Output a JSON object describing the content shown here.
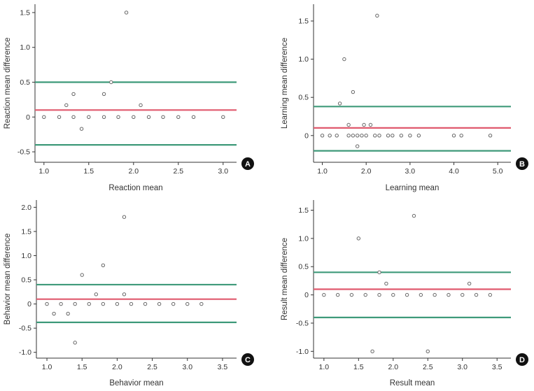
{
  "colors": {
    "mean_line": "#e05a6e",
    "limit_line": "#3f9a7a",
    "point": "#666666",
    "badge": "#111111"
  },
  "chart_data": [
    {
      "type": "scatter",
      "panel": "A",
      "xlabel": "Reaction mean",
      "ylabel": "Reaction mean difference",
      "xlim": [
        0.9,
        3.15
      ],
      "ylim": [
        -0.65,
        1.62
      ],
      "xticks": [
        "1.0",
        "1.5",
        "2.0",
        "2.5",
        "3.0"
      ],
      "yticks": [
        "-0.5",
        "0",
        "0.5",
        "1.0",
        "1.5"
      ],
      "mean_line": 0.1,
      "limits": [
        -0.4,
        0.5
      ],
      "points": [
        [
          1.0,
          0
        ],
        [
          1.17,
          0
        ],
        [
          1.33,
          0
        ],
        [
          1.5,
          0
        ],
        [
          1.67,
          0
        ],
        [
          1.83,
          0
        ],
        [
          2.0,
          0
        ],
        [
          2.17,
          0
        ],
        [
          2.33,
          0
        ],
        [
          2.5,
          0
        ],
        [
          2.67,
          0
        ],
        [
          3.0,
          0
        ],
        [
          1.25,
          0.17
        ],
        [
          1.33,
          0.33
        ],
        [
          1.42,
          -0.17
        ],
        [
          1.67,
          0.33
        ],
        [
          1.75,
          0.5
        ],
        [
          1.92,
          1.5
        ],
        [
          2.08,
          0.17
        ]
      ]
    },
    {
      "type": "scatter",
      "panel": "B",
      "xlabel": "Learning mean",
      "ylabel": "Learning mean difference",
      "xlim": [
        0.8,
        5.3
      ],
      "ylim": [
        -0.35,
        1.72
      ],
      "xticks": [
        "1.0",
        "2.0",
        "3.0",
        "4.0",
        "5.0"
      ],
      "yticks": [
        "0",
        "0.5",
        "1.0",
        "1.5"
      ],
      "mean_line": 0.1,
      "limits": [
        -0.2,
        0.38
      ],
      "points": [
        [
          1.0,
          0
        ],
        [
          1.17,
          0
        ],
        [
          1.33,
          0
        ],
        [
          1.6,
          0
        ],
        [
          1.7,
          0
        ],
        [
          1.8,
          0
        ],
        [
          1.9,
          0
        ],
        [
          2.0,
          0
        ],
        [
          2.2,
          0
        ],
        [
          2.3,
          0
        ],
        [
          2.5,
          0
        ],
        [
          2.6,
          0
        ],
        [
          2.8,
          0
        ],
        [
          3.0,
          0
        ],
        [
          3.2,
          0
        ],
        [
          4.0,
          0
        ],
        [
          4.17,
          0
        ],
        [
          4.83,
          0
        ],
        [
          1.4,
          0.42
        ],
        [
          1.5,
          1.0
        ],
        [
          1.7,
          0.57
        ],
        [
          1.6,
          0.14
        ],
        [
          1.8,
          -0.14
        ],
        [
          1.95,
          0.14
        ],
        [
          2.1,
          0.14
        ],
        [
          2.25,
          1.57
        ]
      ]
    },
    {
      "type": "scatter",
      "panel": "C",
      "xlabel": "Behavior mean",
      "ylabel": "Behavior mean difference",
      "xlim": [
        0.85,
        3.7
      ],
      "ylim": [
        -1.12,
        2.15
      ],
      "xticks": [
        "1.0",
        "1.5",
        "2.0",
        "2.5",
        "3.0",
        "3.5"
      ],
      "yticks": [
        "-1.0",
        "-0.5",
        "0",
        "0.5",
        "1.0",
        "1.5",
        "2.0"
      ],
      "mean_line": 0.1,
      "limits": [
        -0.38,
        0.4
      ],
      "points": [
        [
          1.0,
          0
        ],
        [
          1.2,
          0
        ],
        [
          1.4,
          0
        ],
        [
          1.6,
          0
        ],
        [
          1.8,
          0
        ],
        [
          2.0,
          0
        ],
        [
          2.2,
          0
        ],
        [
          2.4,
          0
        ],
        [
          2.6,
          0
        ],
        [
          2.8,
          0
        ],
        [
          3.0,
          0
        ],
        [
          3.2,
          0
        ],
        [
          1.1,
          -0.2
        ],
        [
          1.3,
          -0.2
        ],
        [
          1.4,
          -0.8
        ],
        [
          1.5,
          0.6
        ],
        [
          1.7,
          0.2
        ],
        [
          1.8,
          0.8
        ],
        [
          2.1,
          1.8
        ],
        [
          2.1,
          0.2
        ]
      ]
    },
    {
      "type": "scatter",
      "panel": "D",
      "xlabel": "Result mean",
      "ylabel": "Result mean difference",
      "xlim": [
        0.85,
        3.7
      ],
      "ylim": [
        -1.12,
        1.68
      ],
      "xticks": [
        "1.0",
        "1.5",
        "2.0",
        "2.5",
        "3.0",
        "3.5"
      ],
      "yticks": [
        "-1.0",
        "-0.5",
        "0",
        "0.5",
        "1.0",
        "1.5"
      ],
      "mean_line": 0.1,
      "limits": [
        -0.4,
        0.4
      ],
      "points": [
        [
          1.0,
          0
        ],
        [
          1.2,
          0
        ],
        [
          1.4,
          0
        ],
        [
          1.6,
          0
        ],
        [
          1.8,
          0
        ],
        [
          2.0,
          0
        ],
        [
          2.2,
          0
        ],
        [
          2.4,
          0
        ],
        [
          2.6,
          0
        ],
        [
          2.8,
          0
        ],
        [
          3.0,
          0
        ],
        [
          3.2,
          0
        ],
        [
          3.4,
          0
        ],
        [
          1.5,
          1.0
        ],
        [
          1.7,
          -1.0
        ],
        [
          1.8,
          0.4
        ],
        [
          1.9,
          0.2
        ],
        [
          2.3,
          1.4
        ],
        [
          2.5,
          -1.0
        ],
        [
          3.1,
          0.2
        ]
      ]
    }
  ]
}
